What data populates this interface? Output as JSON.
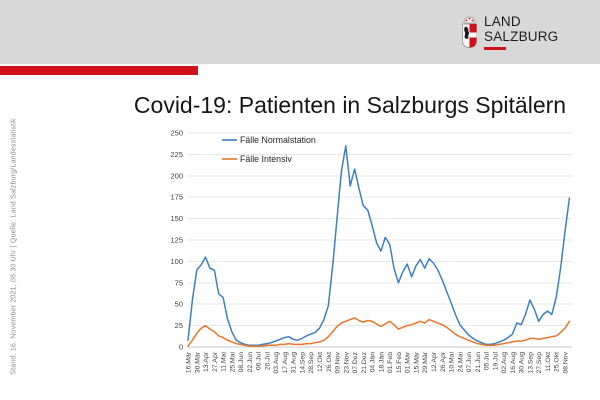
{
  "page": {
    "background_color": "#d8d8d8",
    "card_color": "#ffffff",
    "accent_red": "#d2121a"
  },
  "logo": {
    "line1": "LAND",
    "line2": "SALZBURG"
  },
  "sidebar_note": "Stand: 16. November 2021, 08.30 Uhr | Quelle: Land Salzburg/Landesstatistik",
  "title": "Covid-19: Patienten in Salzburgs Spitälern",
  "chart_data": {
    "type": "line",
    "title": "Covid-19: Patienten in Salzburgs Spitälern",
    "xlabel": "",
    "ylabel": "",
    "ylim": [
      0,
      250
    ],
    "ytick_step": 25,
    "grid": true,
    "legend_position": "top-left-inside",
    "grid_color": "#e7e7e7",
    "axis_color": "#c9c9c9",
    "tick_label_color": "#404040",
    "points_per_tick": 2,
    "x_tick_labels": [
      "16.Mär",
      "30.Mär",
      "13.Apr",
      "27.Apr",
      "11.Mai",
      "25.Mai",
      "08.Jun",
      "22.Jun",
      "06.Jul",
      "20.Jul",
      "03.Aug",
      "17.Aug",
      "31.Aug",
      "14.Sep",
      "28.Sep",
      "12.Okt",
      "26.Okt",
      "09.Nov",
      "23.Nov",
      "07.Dez",
      "21.Dez",
      "04.Jän",
      "18.Jän",
      "01.Feb",
      "15.Feb",
      "01.Mär",
      "15.Mär",
      "29.Mär",
      "12.Apr",
      "26.Apr",
      "10.Mai",
      "24.Mai",
      "07.Jun",
      "21.Jun",
      "05.Jul",
      "19.Jul",
      "02.Aug",
      "16.Aug",
      "30.Aug",
      "13.Sep",
      "27.Sep",
      "11.Okt",
      "25.Okt",
      "08.Nov"
    ],
    "series": [
      {
        "name": "Fälle Normalstation",
        "color": "#3f7fc1",
        "values": [
          8,
          55,
          90,
          96,
          105,
          92,
          90,
          62,
          58,
          33,
          18,
          8,
          5,
          3,
          2,
          2,
          2,
          3,
          4,
          5,
          7,
          9,
          11,
          12,
          9,
          8,
          10,
          13,
          15,
          17,
          22,
          32,
          48,
          95,
          150,
          205,
          235,
          188,
          208,
          185,
          165,
          160,
          142,
          122,
          112,
          128,
          120,
          92,
          75,
          88,
          97,
          82,
          95,
          102,
          92,
          103,
          98,
          90,
          78,
          65,
          52,
          38,
          26,
          20,
          14,
          10,
          7,
          5,
          3,
          3,
          4,
          6,
          8,
          11,
          15,
          28,
          26,
          38,
          55,
          44,
          30,
          38,
          42,
          38,
          58,
          92,
          135,
          174
        ]
      },
      {
        "name": "Fälle Intensiv",
        "color": "#e8762b",
        "values": [
          1,
          8,
          16,
          22,
          25,
          21,
          18,
          13,
          11,
          8,
          6,
          4,
          3,
          2,
          1,
          1,
          1,
          1,
          2,
          2,
          2,
          3,
          3,
          4,
          3,
          3,
          3,
          4,
          4,
          5,
          6,
          8,
          12,
          18,
          24,
          28,
          30,
          32,
          34,
          31,
          29,
          31,
          30,
          27,
          24,
          27,
          30,
          26,
          21,
          23,
          25,
          26,
          28,
          30,
          28,
          32,
          30,
          28,
          26,
          23,
          19,
          15,
          12,
          10,
          8,
          6,
          4,
          3,
          2,
          2,
          2,
          3,
          4,
          5,
          6,
          7,
          7,
          8,
          10,
          10,
          9,
          10,
          11,
          12,
          13,
          17,
          22,
          30
        ]
      }
    ]
  }
}
